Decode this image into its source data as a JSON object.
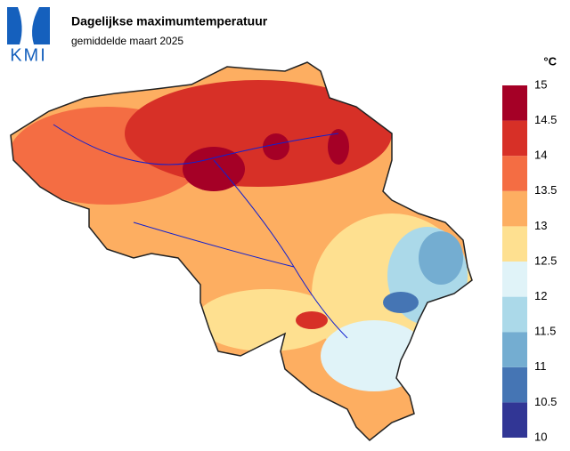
{
  "logo": "KMI",
  "header": {
    "title": "Dagelijkse maximumtemperatuur",
    "subtitle": "gemiddelde maart 2025"
  },
  "legend": {
    "unit": "°C",
    "ticks": [
      10,
      10.5,
      11,
      11.5,
      12,
      12.5,
      13,
      13.5,
      14,
      14.5,
      15
    ],
    "colors": [
      "#313695",
      "#4575b4",
      "#74add1",
      "#abd9e9",
      "#e0f3f8",
      "#fee090",
      "#fdae61",
      "#f46d43",
      "#d73027",
      "#a50026"
    ]
  }
}
